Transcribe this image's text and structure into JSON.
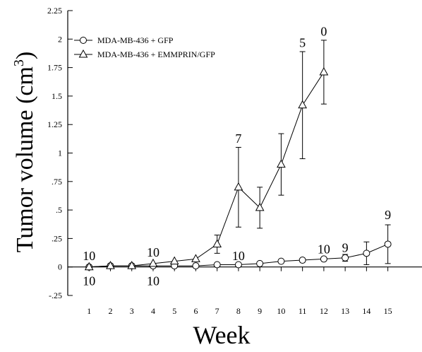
{
  "chart_data": {
    "type": "line",
    "xlabel": "Week",
    "ylabel": "Tumor volume (cm",
    "ylabel_sup": "3",
    "ylabel_close": ")",
    "xlim": [
      0,
      16.6
    ],
    "ylim": [
      -0.25,
      2.25
    ],
    "x_ticks": [
      1,
      2,
      3,
      4,
      5,
      6,
      7,
      8,
      9,
      10,
      11,
      12,
      13,
      14,
      15
    ],
    "y_ticks": [
      {
        "value": -0.25,
        "label": "-.25"
      },
      {
        "value": 0,
        "label": "0"
      },
      {
        "value": 0.25,
        "label": ".25"
      },
      {
        "value": 0.5,
        "label": ".5"
      },
      {
        "value": 0.75,
        "label": ".75"
      },
      {
        "value": 1,
        "label": "1"
      },
      {
        "value": 1.25,
        "label": "1.25"
      },
      {
        "value": 1.5,
        "label": "1.5"
      },
      {
        "value": 1.75,
        "label": "1.75"
      },
      {
        "value": 2,
        "label": "2"
      },
      {
        "value": 2.25,
        "label": "2.25"
      }
    ],
    "grid": false,
    "legend_position": "top-left",
    "series": [
      {
        "name": "MDA-MB-436 + GFP",
        "marker": "circle",
        "points": [
          {
            "x": 1,
            "y": 0.0,
            "err": 0
          },
          {
            "x": 2,
            "y": 0.01,
            "err": 0
          },
          {
            "x": 3,
            "y": 0.01,
            "err": 0
          },
          {
            "x": 4,
            "y": 0.01,
            "err": 0
          },
          {
            "x": 5,
            "y": 0.01,
            "err": 0
          },
          {
            "x": 6,
            "y": 0.01,
            "err": 0
          },
          {
            "x": 7,
            "y": 0.02,
            "err": 0
          },
          {
            "x": 8,
            "y": 0.02,
            "err": 0
          },
          {
            "x": 9,
            "y": 0.03,
            "err": 0
          },
          {
            "x": 10,
            "y": 0.05,
            "err": 0
          },
          {
            "x": 11,
            "y": 0.06,
            "err": 0
          },
          {
            "x": 12,
            "y": 0.07,
            "err": 0
          },
          {
            "x": 13,
            "y": 0.08,
            "err": 0.03
          },
          {
            "x": 14,
            "y": 0.12,
            "err": 0.1
          },
          {
            "x": 15,
            "y": 0.2,
            "err": 0.17
          }
        ]
      },
      {
        "name": "MDA-MB-436 + EMMPRIN/GFP",
        "marker": "triangle",
        "points": [
          {
            "x": 1,
            "y": 0.0,
            "err": 0
          },
          {
            "x": 2,
            "y": 0.01,
            "err": 0
          },
          {
            "x": 3,
            "y": 0.01,
            "err": 0
          },
          {
            "x": 4,
            "y": 0.03,
            "err": 0
          },
          {
            "x": 5,
            "y": 0.05,
            "err": 0
          },
          {
            "x": 6,
            "y": 0.07,
            "err": 0
          },
          {
            "x": 7,
            "y": 0.2,
            "err": 0.08
          },
          {
            "x": 8,
            "y": 0.7,
            "err": 0.35
          },
          {
            "x": 9,
            "y": 0.52,
            "err": 0.18
          },
          {
            "x": 10,
            "y": 0.9,
            "err": 0.27
          },
          {
            "x": 11,
            "y": 1.42,
            "err": 0.47
          },
          {
            "x": 12,
            "y": 1.71,
            "err": 0.28
          }
        ]
      }
    ],
    "annotations": [
      {
        "text": "10",
        "x": 1,
        "y": 0.06
      },
      {
        "text": "10",
        "x": 1,
        "y": -0.16
      },
      {
        "text": "10",
        "x": 4,
        "y": 0.09
      },
      {
        "text": "10",
        "x": 4,
        "y": -0.16
      },
      {
        "text": "7",
        "x": 8,
        "y": 1.09
      },
      {
        "text": "10",
        "x": 8,
        "y": 0.06
      },
      {
        "text": "5",
        "x": 11,
        "y": 1.93
      },
      {
        "text": "0",
        "x": 12,
        "y": 2.03
      },
      {
        "text": "10",
        "x": 12,
        "y": 0.12
      },
      {
        "text": "9",
        "x": 13,
        "y": 0.13
      },
      {
        "text": "9",
        "x": 15,
        "y": 0.42
      }
    ]
  }
}
